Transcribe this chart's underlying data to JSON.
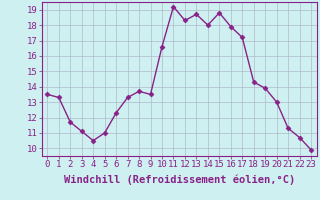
{
  "x": [
    0,
    1,
    2,
    3,
    4,
    5,
    6,
    7,
    8,
    9,
    10,
    11,
    12,
    13,
    14,
    15,
    16,
    17,
    18,
    19,
    20,
    21,
    22,
    23
  ],
  "y": [
    13.5,
    13.3,
    11.7,
    11.1,
    10.5,
    11.0,
    12.3,
    13.3,
    13.7,
    13.5,
    16.6,
    19.2,
    18.3,
    18.7,
    18.0,
    18.8,
    17.9,
    17.2,
    14.3,
    13.9,
    13.0,
    11.3,
    10.7,
    9.9
  ],
  "line_color": "#882288",
  "marker": "D",
  "marker_size": 2.5,
  "bg_color": "#cff0f0",
  "grid_color": "#b0b8cc",
  "xlabel": "Windchill (Refroidissement éolien,°C)",
  "xlabel_fontsize": 7.5,
  "xlim": [
    -0.5,
    23.5
  ],
  "ylim": [
    9.5,
    19.5
  ],
  "yticks": [
    10,
    11,
    12,
    13,
    14,
    15,
    16,
    17,
    18,
    19
  ],
  "xticks": [
    0,
    1,
    2,
    3,
    4,
    5,
    6,
    7,
    8,
    9,
    10,
    11,
    12,
    13,
    14,
    15,
    16,
    17,
    18,
    19,
    20,
    21,
    22,
    23
  ],
  "tick_fontsize": 6.5,
  "line_width": 1.0,
  "spine_color": "#882288",
  "label_color": "#882288"
}
